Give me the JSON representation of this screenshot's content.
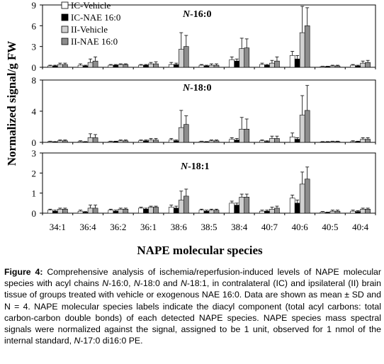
{
  "figure": {
    "ylabel": "Normalized signal/g FW",
    "xlabel": "NAPE molecular species"
  },
  "legend": [
    {
      "label": "IC-Vehicle",
      "color": "#ffffff"
    },
    {
      "label": "IC-NAE 16:0",
      "color": "#000000"
    },
    {
      "label": "II-Vehicle",
      "color": "#d0d0d0"
    },
    {
      "label": "II-NAE 16:0",
      "color": "#8c8c8c"
    }
  ],
  "chart_data": [
    {
      "type": "bar",
      "title": "N-16:0",
      "ylim": [
        0,
        9
      ],
      "yticks": [
        0,
        3,
        6,
        9
      ],
      "categories": [
        "34:1",
        "36:4",
        "36:2",
        "36:1",
        "38:6",
        "38:5",
        "38:4",
        "40:7",
        "40:6",
        "40:5",
        "40:4"
      ],
      "series": [
        {
          "name": "IC-Vehicle",
          "values": [
            0.2,
            0.3,
            0.3,
            0.3,
            0.4,
            0.3,
            1.1,
            0.4,
            1.7,
            0.1,
            0.3
          ],
          "errors": [
            0.1,
            0.2,
            0.1,
            0.1,
            0.3,
            0.1,
            0.4,
            0.2,
            0.6,
            0.05,
            0.1
          ]
        },
        {
          "name": "IC-NAE 16:0",
          "values": [
            0.2,
            0.2,
            0.3,
            0.3,
            0.4,
            0.2,
            0.9,
            0.3,
            1.2,
            0.1,
            0.2
          ],
          "errors": [
            0.1,
            0.1,
            0.1,
            0.1,
            0.2,
            0.1,
            0.3,
            0.1,
            0.5,
            0.05,
            0.1
          ]
        },
        {
          "name": "II-Vehicle",
          "values": [
            0.4,
            0.7,
            0.4,
            0.5,
            2.6,
            0.3,
            2.7,
            0.6,
            5.0,
            0.2,
            0.6
          ],
          "errors": [
            0.2,
            0.5,
            0.1,
            0.2,
            2.4,
            0.2,
            1.5,
            0.4,
            3.8,
            0.1,
            0.3
          ]
        },
        {
          "name": "II-NAE 16:0",
          "values": [
            0.4,
            0.9,
            0.4,
            0.5,
            3.0,
            0.3,
            2.8,
            0.9,
            6.0,
            0.2,
            0.7
          ],
          "errors": [
            0.2,
            0.6,
            0.1,
            0.3,
            1.6,
            0.2,
            1.3,
            0.6,
            2.6,
            0.1,
            0.3
          ]
        }
      ]
    },
    {
      "type": "bar",
      "title": "N-18:0",
      "ylim": [
        0,
        8
      ],
      "yticks": [
        0,
        4,
        8
      ],
      "categories": [
        "34:1",
        "36:4",
        "36:2",
        "36:1",
        "38:6",
        "38:5",
        "38:4",
        "40:7",
        "40:6",
        "40:5",
        "40:4"
      ],
      "series": [
        {
          "name": "IC-Vehicle",
          "values": [
            0.1,
            0.1,
            0.1,
            0.2,
            0.3,
            0.1,
            0.4,
            0.2,
            0.7,
            0.05,
            0.1
          ],
          "errors": [
            0.05,
            0.1,
            0.05,
            0.1,
            0.2,
            0.05,
            0.2,
            0.1,
            0.5,
            0.05,
            0.1
          ]
        },
        {
          "name": "IC-NAE 16:0",
          "values": [
            0.05,
            0.05,
            0.1,
            0.2,
            0.2,
            0.05,
            0.3,
            0.1,
            0.4,
            0.05,
            0.1
          ],
          "errors": [
            0.05,
            0.05,
            0.05,
            0.1,
            0.1,
            0.05,
            0.2,
            0.1,
            0.2,
            0.05,
            0.05
          ]
        },
        {
          "name": "II-Vehicle",
          "values": [
            0.2,
            0.6,
            0.2,
            0.3,
            1.9,
            0.2,
            1.7,
            0.5,
            3.5,
            0.1,
            0.4
          ],
          "errors": [
            0.1,
            0.5,
            0.1,
            0.2,
            2.2,
            0.1,
            1.5,
            0.3,
            2.5,
            0.05,
            0.2
          ]
        },
        {
          "name": "II-NAE 16:0",
          "values": [
            0.2,
            0.6,
            0.2,
            0.3,
            2.3,
            0.2,
            1.7,
            0.5,
            4.1,
            0.1,
            0.4
          ],
          "errors": [
            0.1,
            0.4,
            0.1,
            0.2,
            1.1,
            0.1,
            1.3,
            0.3,
            3.2,
            0.05,
            0.2
          ]
        }
      ]
    },
    {
      "type": "bar",
      "title": "N-18:1",
      "ylim": [
        0,
        3
      ],
      "yticks": [
        0,
        1,
        2,
        3
      ],
      "categories": [
        "34:1",
        "36:4",
        "36:2",
        "36:1",
        "38:6",
        "38:5",
        "38:4",
        "40:7",
        "40:6",
        "40:5",
        "40:4"
      ],
      "series": [
        {
          "name": "IC-Vehicle",
          "values": [
            0.15,
            0.1,
            0.15,
            0.25,
            0.3,
            0.15,
            0.5,
            0.1,
            0.75,
            0.05,
            0.1
          ],
          "errors": [
            0.05,
            0.05,
            0.05,
            0.05,
            0.1,
            0.05,
            0.1,
            0.05,
            0.15,
            0.03,
            0.05
          ]
        },
        {
          "name": "IC-NAE 16:0",
          "values": [
            0.1,
            0.05,
            0.1,
            0.2,
            0.25,
            0.1,
            0.4,
            0.1,
            0.5,
            0.03,
            0.08
          ],
          "errors": [
            0.05,
            0.03,
            0.05,
            0.05,
            0.1,
            0.05,
            0.1,
            0.05,
            0.15,
            0.02,
            0.04
          ]
        },
        {
          "name": "II-Vehicle",
          "values": [
            0.2,
            0.25,
            0.2,
            0.3,
            0.65,
            0.15,
            0.8,
            0.2,
            1.45,
            0.1,
            0.2
          ],
          "errors": [
            0.05,
            0.15,
            0.05,
            0.05,
            0.45,
            0.05,
            0.15,
            0.1,
            0.6,
            0.05,
            0.05
          ]
        },
        {
          "name": "II-NAE 16:0",
          "values": [
            0.2,
            0.25,
            0.2,
            0.3,
            0.85,
            0.15,
            0.8,
            0.25,
            1.7,
            0.1,
            0.2
          ],
          "errors": [
            0.05,
            0.15,
            0.05,
            0.05,
            0.35,
            0.05,
            0.15,
            0.1,
            0.6,
            0.05,
            0.05
          ]
        }
      ]
    }
  ],
  "caption": {
    "label": "Figure 4:",
    "p1": " Comprehensive analysis of ischemia/reperfusion-induced levels of NAPE molecular species with acyl chains ",
    "n160": "N",
    "p2": "-16:0, ",
    "n180": "N",
    "p3": "-18:0 and ",
    "n181": "N",
    "p4": "-18:1, in contralateral (IC) and ipsilateral (II) brain tissue of groups treated with vehicle or exogenous NAE 16:0. Data are shown as mean ± SD and N = 4.  NAPE molecular species labels indicate the diacyl component (total acyl carbons: total carbon-carbon double bonds) of each detected NAPE species. NAPE species mass spectral signals were normalized against the signal, assigned to be 1 unit, observed for 1 nmol of the internal standard, ",
    "n170": "N",
    "p5": "-17:0 di16:0 PE."
  }
}
